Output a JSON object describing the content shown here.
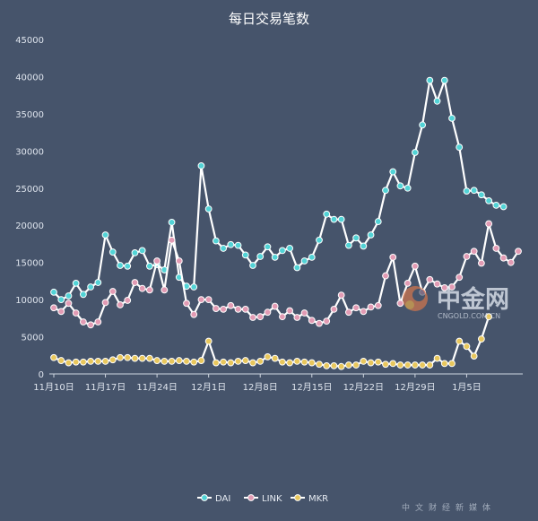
{
  "chart_data": {
    "type": "line",
    "title": "每日交易笔数",
    "xlabel": "",
    "ylabel": "",
    "ylim": [
      0,
      45000
    ],
    "yticks": [
      0,
      5000,
      10000,
      15000,
      20000,
      25000,
      30000,
      35000,
      40000,
      45000
    ],
    "xtick_labels": [
      "11月10日",
      "11月17日",
      "11月24日",
      "12月1日",
      "12月8日",
      "12月15日",
      "12月22日",
      "12月29日",
      "1月5日"
    ],
    "xtick_step": 7,
    "grid": false,
    "legend_position": "bottom",
    "series": [
      {
        "name": "DAI",
        "color": "#ffffff",
        "marker_color": "#52d3d6",
        "values": [
          11000,
          10000,
          10500,
          12200,
          10700,
          11700,
          12300,
          18700,
          16400,
          14600,
          14500,
          16300,
          16600,
          14500,
          14700,
          14000,
          20400,
          13000,
          11800,
          11700,
          28000,
          22200,
          17900,
          16900,
          17400,
          17300,
          16000,
          14600,
          15800,
          17100,
          15700,
          16600,
          16900,
          14300,
          15200,
          15700,
          18000,
          21500,
          20800,
          20800,
          17300,
          18300,
          17200,
          18700,
          20500,
          24700,
          27200,
          25300,
          25000,
          29800,
          33500,
          39500,
          36700,
          39500,
          34400,
          30500,
          24600,
          24700,
          24100,
          23300,
          22700,
          22500
        ]
      },
      {
        "name": "LINK",
        "color": "#ffffff",
        "marker_color": "#e29bb4",
        "values": [
          8900,
          8400,
          9500,
          8200,
          7000,
          6600,
          7000,
          9600,
          11100,
          9300,
          9900,
          12300,
          11500,
          11300,
          15200,
          11300,
          18000,
          15200,
          9500,
          8000,
          10000,
          10000,
          8800,
          8700,
          9200,
          8700,
          8700,
          7600,
          7700,
          8300,
          9100,
          7700,
          8500,
          7600,
          8200,
          7200,
          6800,
          7100,
          8700,
          10600,
          8300,
          8900,
          8400,
          9000,
          9200,
          13200,
          15700,
          9500,
          12200,
          14500,
          11000,
          12700,
          12100,
          11600,
          11700,
          13000,
          15800,
          16500,
          14900,
          20200,
          16900,
          15600,
          15000,
          16500
        ]
      },
      {
        "name": "MKR",
        "color": "#ffffff",
        "marker_color": "#e8c75d",
        "values": [
          2200,
          1800,
          1500,
          1600,
          1600,
          1700,
          1700,
          1700,
          1900,
          2200,
          2200,
          2100,
          2100,
          2100,
          1800,
          1700,
          1700,
          1800,
          1700,
          1600,
          1800,
          4400,
          1500,
          1600,
          1500,
          1700,
          1800,
          1500,
          1700,
          2300,
          2100,
          1600,
          1500,
          1700,
          1600,
          1500,
          1300,
          1100,
          1100,
          1000,
          1200,
          1200,
          1700,
          1500,
          1600,
          1300,
          1400,
          1200,
          1200,
          1200,
          1200,
          1200,
          2100,
          1400,
          1400,
          4400,
          3700,
          2400,
          4700,
          7700
        ]
      }
    ]
  },
  "watermark": {
    "brand": "中金网",
    "url": "CNGOLD.COM.CN",
    "tagline": "中文财经新媒体"
  }
}
